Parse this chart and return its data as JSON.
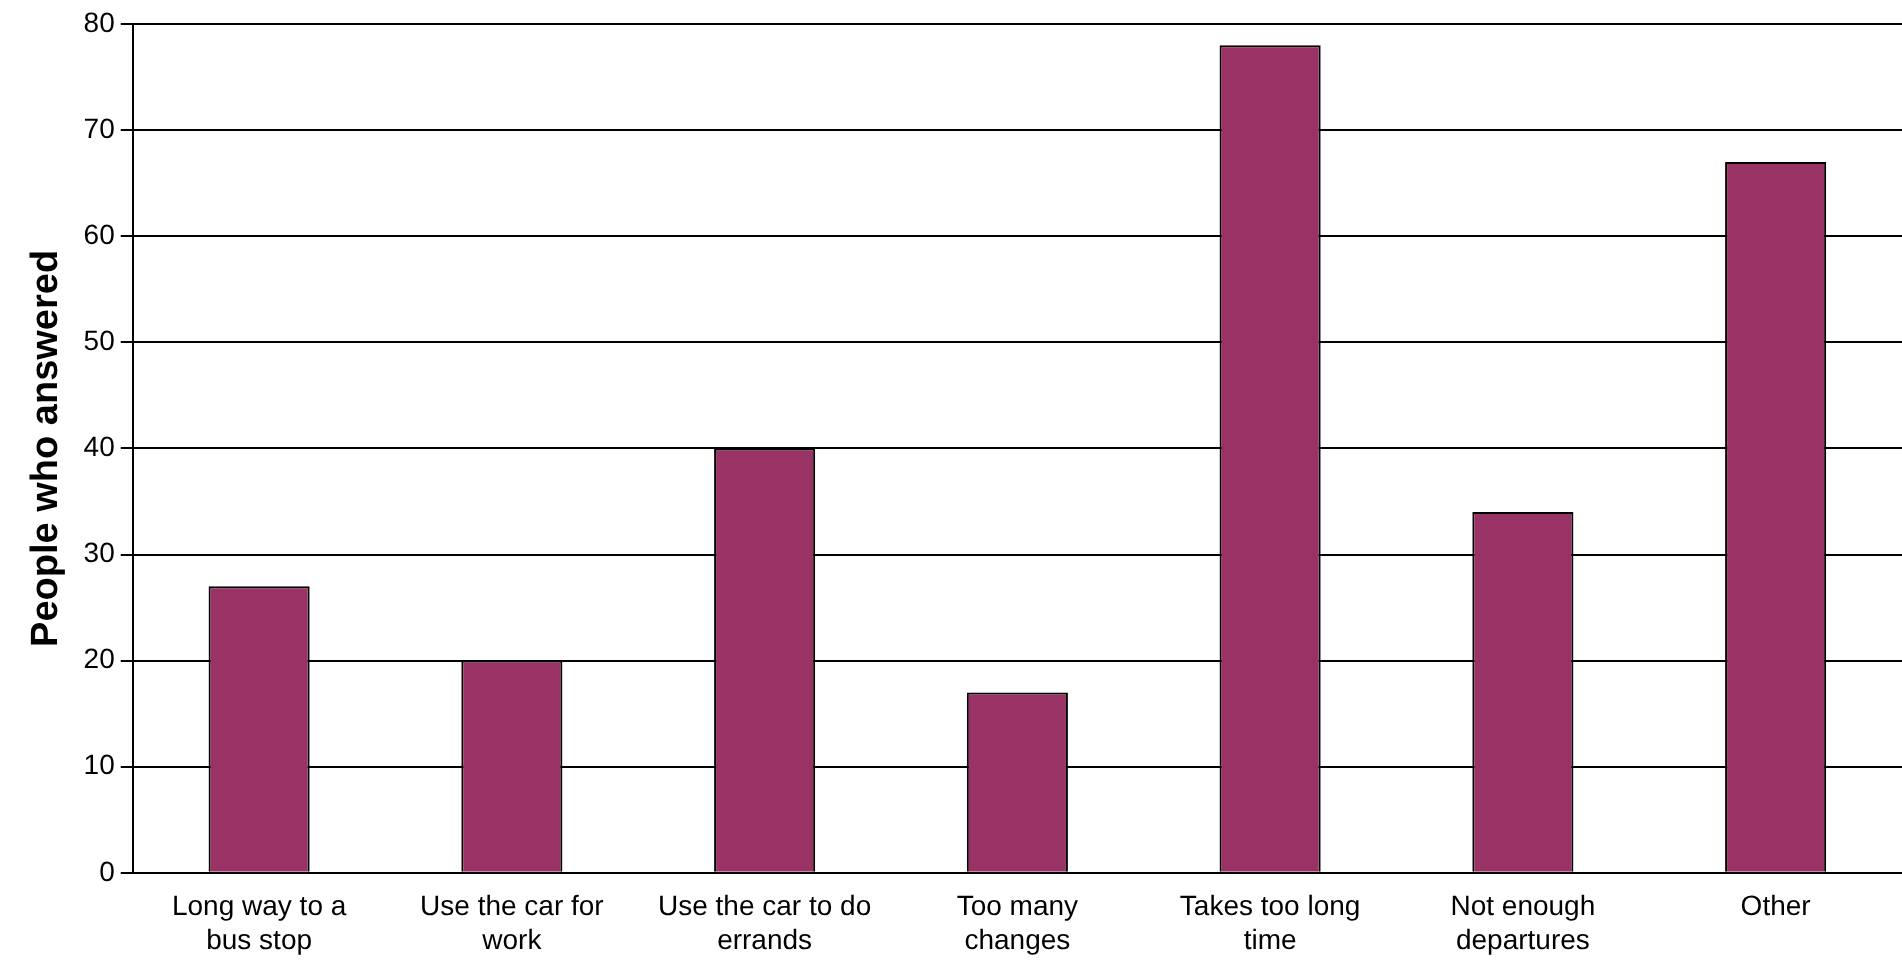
{
  "chart_data": {
    "type": "bar",
    "ylabel": "People who answered",
    "categories": [
      "Long way to a bus stop",
      "Use the car for work",
      "Use the car to do errands",
      "Too many changes",
      "Takes too long time",
      "Not enough departures",
      "Other"
    ],
    "values": [
      27,
      20,
      40,
      17,
      78,
      34,
      67
    ],
    "color": "#993366",
    "ylim": [
      0,
      80
    ],
    "yticks": [
      0,
      10,
      20,
      30,
      40,
      50,
      60,
      70,
      80
    ],
    "grid": "y",
    "legend": false
  }
}
